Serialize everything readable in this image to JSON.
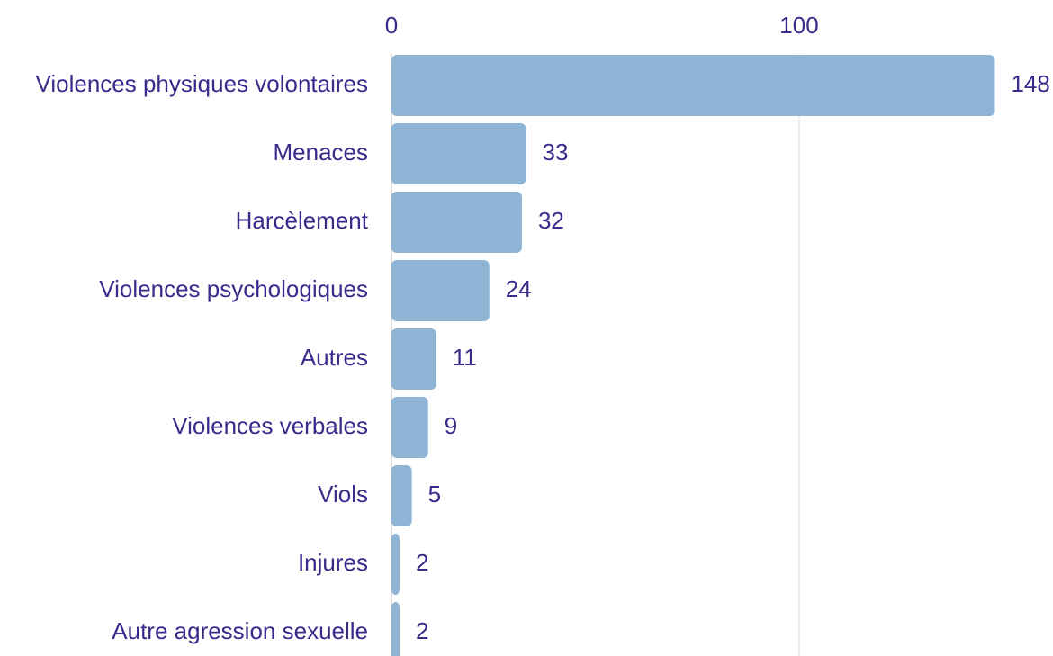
{
  "chart_data": {
    "type": "bar",
    "orientation": "horizontal",
    "categories": [
      "Violences physiques volontaires",
      "Menaces",
      "Harcèlement",
      "Violences psychologiques",
      "Autres",
      "Violences verbales",
      "Viols",
      "Injures",
      "Autre agression sexuelle"
    ],
    "values": [
      148,
      33,
      32,
      24,
      11,
      9,
      5,
      2,
      2
    ],
    "color": "#8fb5d6",
    "xlim": [
      0,
      150
    ],
    "xticks": [
      0,
      100
    ],
    "grid": true
  }
}
